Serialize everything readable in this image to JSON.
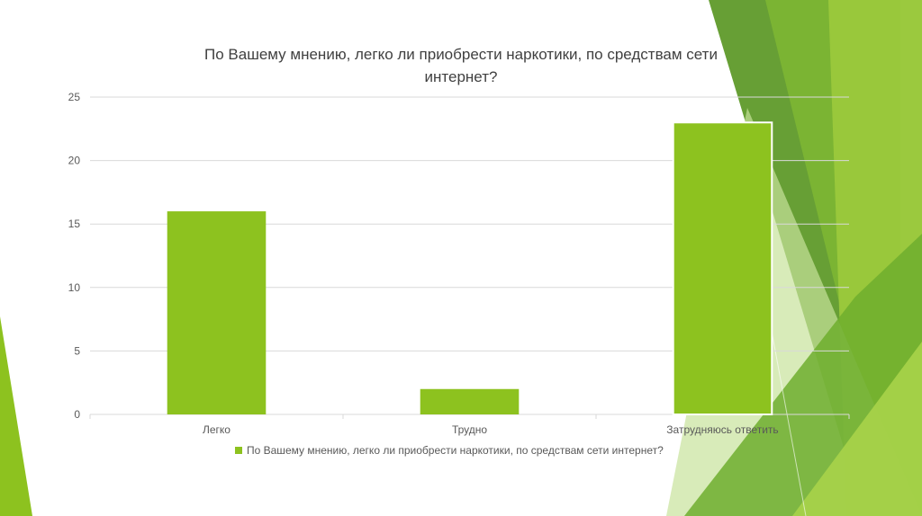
{
  "chart_data": {
    "type": "bar",
    "title": "По Вашему мнению, легко ли приобрести наркотики, по средствам сети интернет?",
    "title_lines": [
      "По Вашему мнению, легко ли приобрести наркотики, по средствам сети",
      "интернет?"
    ],
    "categories": [
      "Легко",
      "Трудно",
      "Затрудняюсь ответить"
    ],
    "series": [
      {
        "name": "По Вашему мнению, легко ли приобрести наркотики, по средствам сети интернет?",
        "values": [
          16,
          2,
          23
        ],
        "color": "#8dc21f"
      }
    ],
    "ylim": [
      0,
      25
    ],
    "yticks": [
      "0",
      "5",
      "10",
      "15",
      "20",
      "25"
    ],
    "grid": true,
    "legend_position": "bottom"
  },
  "colors": {
    "bar": "#8dc21f",
    "grid": "#d9d9d9",
    "text": "#595959",
    "decor_light": "#a9d34a",
    "decor_dark": "#5f9a2a"
  }
}
